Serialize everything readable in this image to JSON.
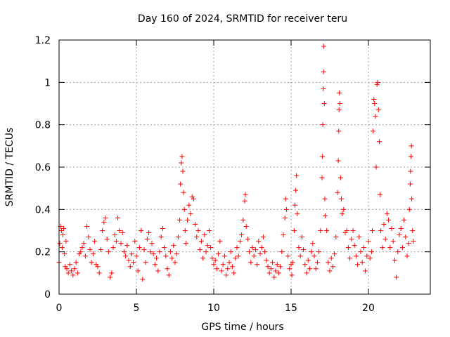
{
  "chart_data": {
    "type": "scatter",
    "title": "Day 160 of 2024, SRMTID for receiver teru",
    "xlabel": "GPS time / hours",
    "ylabel": "SRMTID / TECUs",
    "xlim": [
      0,
      24
    ],
    "ylim": [
      0,
      1.2
    ],
    "xticks": [
      0,
      5,
      10,
      15,
      20
    ],
    "xtick_labels": [
      "0",
      "5",
      "10",
      "15",
      "20"
    ],
    "yticks": [
      0,
      0.2,
      0.4,
      0.6,
      0.8,
      1.0,
      1.2
    ],
    "ytick_labels": [
      "0",
      "0.2",
      "0.4",
      "0.6",
      "0.8",
      "1",
      "1.2"
    ],
    "grid": true,
    "marker": "+",
    "color": "#ff0000",
    "series": [
      {
        "name": "SRMTID",
        "points": [
          [
            0.0,
            0.15
          ],
          [
            0.05,
            0.24
          ],
          [
            0.1,
            0.32
          ],
          [
            0.15,
            0.3
          ],
          [
            0.2,
            0.22
          ],
          [
            0.25,
            0.28
          ],
          [
            0.3,
            0.31
          ],
          [
            0.35,
            0.19
          ],
          [
            0.4,
            0.13
          ],
          [
            0.45,
            0.25
          ],
          [
            0.5,
            0.12
          ],
          [
            0.6,
            0.1
          ],
          [
            0.7,
            0.14
          ],
          [
            0.8,
            0.11
          ],
          [
            0.9,
            0.09
          ],
          [
            1.0,
            0.12
          ],
          [
            1.1,
            0.15
          ],
          [
            1.2,
            0.1
          ],
          [
            1.3,
            0.19
          ],
          [
            1.4,
            0.2
          ],
          [
            1.5,
            0.22
          ],
          [
            1.6,
            0.24
          ],
          [
            1.7,
            0.18
          ],
          [
            1.8,
            0.32
          ],
          [
            1.9,
            0.27
          ],
          [
            2.0,
            0.21
          ],
          [
            2.1,
            0.15
          ],
          [
            2.2,
            0.19
          ],
          [
            2.3,
            0.25
          ],
          [
            2.4,
            0.14
          ],
          [
            2.5,
            0.13
          ],
          [
            2.6,
            0.1
          ],
          [
            2.7,
            0.21
          ],
          [
            2.8,
            0.3
          ],
          [
            2.9,
            0.34
          ],
          [
            3.0,
            0.36
          ],
          [
            3.1,
            0.26
          ],
          [
            3.2,
            0.2
          ],
          [
            3.3,
            0.08
          ],
          [
            3.4,
            0.1
          ],
          [
            3.5,
            0.22
          ],
          [
            3.6,
            0.28
          ],
          [
            3.7,
            0.25
          ],
          [
            3.8,
            0.36
          ],
          [
            3.9,
            0.3
          ],
          [
            4.0,
            0.24
          ],
          [
            4.1,
            0.29
          ],
          [
            4.2,
            0.2
          ],
          [
            4.3,
            0.18
          ],
          [
            4.4,
            0.23
          ],
          [
            4.5,
            0.16
          ],
          [
            4.6,
            0.13
          ],
          [
            4.7,
            0.19
          ],
          [
            4.8,
            0.15
          ],
          [
            4.9,
            0.25
          ],
          [
            5.0,
            0.18
          ],
          [
            5.1,
            0.11
          ],
          [
            5.2,
            0.22
          ],
          [
            5.3,
            0.3
          ],
          [
            5.4,
            0.07
          ],
          [
            5.5,
            0.21
          ],
          [
            5.6,
            0.15
          ],
          [
            5.7,
            0.26
          ],
          [
            5.8,
            0.29
          ],
          [
            5.9,
            0.2
          ],
          [
            6.0,
            0.24
          ],
          [
            6.1,
            0.19
          ],
          [
            6.2,
            0.14
          ],
          [
            6.3,
            0.17
          ],
          [
            6.4,
            0.11
          ],
          [
            6.5,
            0.2
          ],
          [
            6.6,
            0.27
          ],
          [
            6.7,
            0.31
          ],
          [
            6.8,
            0.22
          ],
          [
            6.9,
            0.18
          ],
          [
            7.0,
            0.12
          ],
          [
            7.1,
            0.09
          ],
          [
            7.2,
            0.2
          ],
          [
            7.3,
            0.17
          ],
          [
            7.4,
            0.23
          ],
          [
            7.5,
            0.15
          ],
          [
            7.6,
            0.19
          ],
          [
            7.7,
            0.27
          ],
          [
            7.8,
            0.35
          ],
          [
            7.85,
            0.52
          ],
          [
            7.9,
            0.62
          ],
          [
            7.95,
            0.65
          ],
          [
            8.0,
            0.58
          ],
          [
            8.05,
            0.48
          ],
          [
            8.1,
            0.4
          ],
          [
            8.15,
            0.3
          ],
          [
            8.2,
            0.24
          ],
          [
            8.3,
            0.35
          ],
          [
            8.4,
            0.42
          ],
          [
            8.5,
            0.38
          ],
          [
            8.6,
            0.46
          ],
          [
            8.7,
            0.45
          ],
          [
            8.8,
            0.33
          ],
          [
            8.9,
            0.27
          ],
          [
            9.0,
            0.3
          ],
          [
            9.1,
            0.21
          ],
          [
            9.2,
            0.25
          ],
          [
            9.3,
            0.17
          ],
          [
            9.4,
            0.28
          ],
          [
            9.5,
            0.2
          ],
          [
            9.6,
            0.23
          ],
          [
            9.7,
            0.3
          ],
          [
            9.8,
            0.22
          ],
          [
            9.9,
            0.17
          ],
          [
            10.0,
            0.14
          ],
          [
            10.1,
            0.16
          ],
          [
            10.2,
            0.12
          ],
          [
            10.3,
            0.19
          ],
          [
            10.4,
            0.25
          ],
          [
            10.5,
            0.11
          ],
          [
            10.6,
            0.14
          ],
          [
            10.7,
            0.18
          ],
          [
            10.8,
            0.09
          ],
          [
            10.9,
            0.12
          ],
          [
            11.0,
            0.15
          ],
          [
            11.1,
            0.2
          ],
          [
            11.2,
            0.13
          ],
          [
            11.3,
            0.1
          ],
          [
            11.4,
            0.17
          ],
          [
            11.5,
            0.22
          ],
          [
            11.6,
            0.18
          ],
          [
            11.7,
            0.25
          ],
          [
            11.8,
            0.28
          ],
          [
            11.9,
            0.35
          ],
          [
            12.0,
            0.44
          ],
          [
            12.05,
            0.47
          ],
          [
            12.1,
            0.32
          ],
          [
            12.2,
            0.26
          ],
          [
            12.3,
            0.2
          ],
          [
            12.4,
            0.15
          ],
          [
            12.5,
            0.22
          ],
          [
            12.6,
            0.18
          ],
          [
            12.7,
            0.21
          ],
          [
            12.8,
            0.14
          ],
          [
            12.9,
            0.25
          ],
          [
            13.0,
            0.19
          ],
          [
            13.1,
            0.22
          ],
          [
            13.2,
            0.27
          ],
          [
            13.3,
            0.2
          ],
          [
            13.4,
            0.16
          ],
          [
            13.5,
            0.13
          ],
          [
            13.6,
            0.1
          ],
          [
            13.7,
            0.12
          ],
          [
            13.8,
            0.15
          ],
          [
            13.9,
            0.08
          ],
          [
            14.0,
            0.11
          ],
          [
            14.1,
            0.14
          ],
          [
            14.2,
            0.1
          ],
          [
            14.3,
            0.13
          ],
          [
            14.4,
            0.2
          ],
          [
            14.5,
            0.28
          ],
          [
            14.6,
            0.36
          ],
          [
            14.65,
            0.45
          ],
          [
            14.7,
            0.4
          ],
          [
            14.8,
            0.18
          ],
          [
            14.9,
            0.12
          ],
          [
            15.0,
            0.14
          ],
          [
            15.05,
            0.09
          ],
          [
            15.1,
            0.15
          ],
          [
            15.2,
            0.3
          ],
          [
            15.25,
            0.42
          ],
          [
            15.3,
            0.49
          ],
          [
            15.35,
            0.56
          ],
          [
            15.4,
            0.38
          ],
          [
            15.5,
            0.22
          ],
          [
            15.6,
            0.18
          ],
          [
            15.7,
            0.27
          ],
          [
            15.8,
            0.21
          ],
          [
            15.9,
            0.14
          ],
          [
            16.0,
            0.1
          ],
          [
            16.1,
            0.16
          ],
          [
            16.2,
            0.12
          ],
          [
            16.3,
            0.2
          ],
          [
            16.4,
            0.24
          ],
          [
            16.5,
            0.18
          ],
          [
            16.6,
            0.12
          ],
          [
            16.7,
            0.15
          ],
          [
            16.8,
            0.2
          ],
          [
            16.9,
            0.3
          ],
          [
            17.0,
            0.55
          ],
          [
            17.02,
            0.65
          ],
          [
            17.05,
            0.8
          ],
          [
            17.08,
            0.97
          ],
          [
            17.1,
            1.05
          ],
          [
            17.12,
            1.17
          ],
          [
            17.15,
            0.9
          ],
          [
            17.18,
            0.45
          ],
          [
            17.2,
            0.37
          ],
          [
            17.3,
            0.3
          ],
          [
            17.4,
            0.15
          ],
          [
            17.5,
            0.11
          ],
          [
            17.6,
            0.17
          ],
          [
            17.7,
            0.13
          ],
          [
            17.8,
            0.19
          ],
          [
            17.9,
            0.27
          ],
          [
            18.0,
            0.48
          ],
          [
            18.05,
            0.63
          ],
          [
            18.08,
            0.77
          ],
          [
            18.1,
            0.87
          ],
          [
            18.12,
            0.95
          ],
          [
            18.15,
            0.9
          ],
          [
            18.2,
            0.55
          ],
          [
            18.25,
            0.45
          ],
          [
            18.3,
            0.38
          ],
          [
            18.4,
            0.4
          ],
          [
            18.5,
            0.29
          ],
          [
            18.6,
            0.3
          ],
          [
            18.7,
            0.22
          ],
          [
            18.8,
            0.17
          ],
          [
            18.9,
            0.26
          ],
          [
            19.0,
            0.3
          ],
          [
            19.1,
            0.23
          ],
          [
            19.2,
            0.18
          ],
          [
            19.3,
            0.14
          ],
          [
            19.4,
            0.27
          ],
          [
            19.5,
            0.2
          ],
          [
            19.6,
            0.15
          ],
          [
            19.7,
            0.22
          ],
          [
            19.8,
            0.11
          ],
          [
            19.9,
            0.18
          ],
          [
            20.0,
            0.25
          ],
          [
            20.1,
            0.17
          ],
          [
            20.2,
            0.2
          ],
          [
            20.25,
            0.3
          ],
          [
            20.3,
            0.77
          ],
          [
            20.35,
            0.92
          ],
          [
            20.4,
            0.9
          ],
          [
            20.45,
            0.84
          ],
          [
            20.5,
            0.6
          ],
          [
            20.55,
            0.99
          ],
          [
            20.6,
            1.0
          ],
          [
            20.65,
            0.87
          ],
          [
            20.7,
            0.72
          ],
          [
            20.75,
            0.47
          ],
          [
            20.8,
            0.3
          ],
          [
            20.9,
            0.22
          ],
          [
            21.0,
            0.33
          ],
          [
            21.1,
            0.26
          ],
          [
            21.2,
            0.38
          ],
          [
            21.3,
            0.35
          ],
          [
            21.4,
            0.22
          ],
          [
            21.5,
            0.31
          ],
          [
            21.6,
            0.25
          ],
          [
            21.7,
            0.16
          ],
          [
            21.8,
            0.08
          ],
          [
            21.9,
            0.2
          ],
          [
            22.0,
            0.28
          ],
          [
            22.1,
            0.31
          ],
          [
            22.2,
            0.22
          ],
          [
            22.3,
            0.35
          ],
          [
            22.4,
            0.27
          ],
          [
            22.5,
            0.18
          ],
          [
            22.6,
            0.24
          ],
          [
            22.65,
            0.4
          ],
          [
            22.7,
            0.52
          ],
          [
            22.72,
            0.58
          ],
          [
            22.75,
            0.65
          ],
          [
            22.78,
            0.7
          ],
          [
            22.8,
            0.45
          ],
          [
            22.85,
            0.3
          ],
          [
            22.9,
            0.25
          ]
        ]
      }
    ]
  }
}
